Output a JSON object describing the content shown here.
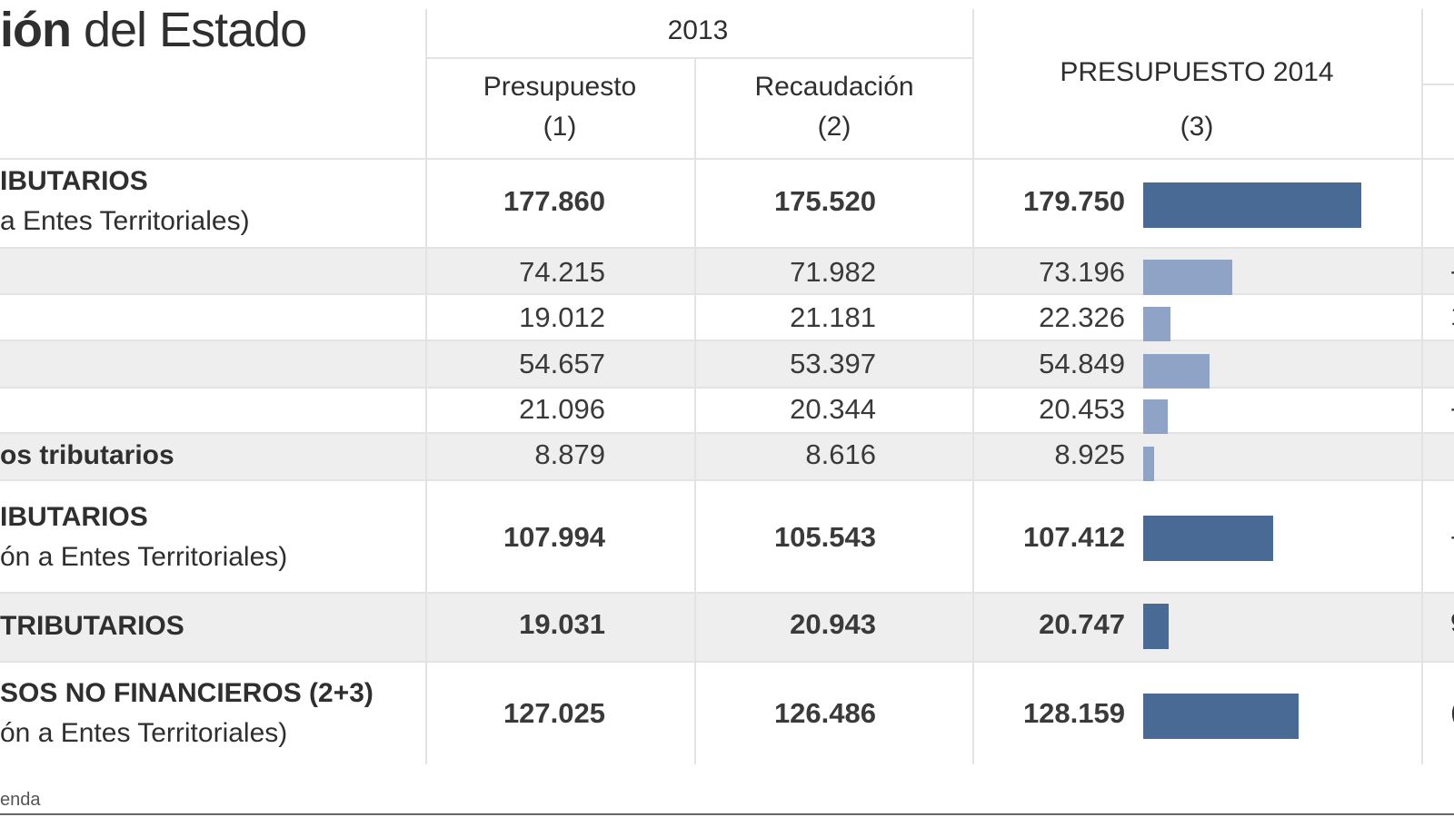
{
  "title": {
    "bold": "ión",
    "rest": " del Estado"
  },
  "header": {
    "year": "2013",
    "col1": [
      "Presupuesto",
      "(1)"
    ],
    "col2": [
      "Recaudación",
      "(2)"
    ],
    "col3": [
      "PRESUPUESTO 2014",
      "(3)"
    ]
  },
  "rows": [
    {
      "label_main": "IBUTARIOS",
      "label_sub": "a Entes Territoriales)",
      "p2013": "177.860",
      "r2013": "175.520",
      "p2014": "179.750",
      "value_2014": 179750,
      "bar_color": "#4a6a96",
      "bold": true
    },
    {
      "label_main": "",
      "label_sub": "",
      "p2013": "74.215",
      "r2013": "71.982",
      "p2014": "73.196",
      "value_2014": 73196,
      "bar_color": "#8fa3c6",
      "bold": false
    },
    {
      "label_main": "",
      "label_sub": "",
      "p2013": "19.012",
      "r2013": "21.181",
      "p2014": "22.326",
      "value_2014": 22326,
      "bar_color": "#8fa3c6",
      "bold": false
    },
    {
      "label_main": "",
      "label_sub": "",
      "p2013": "54.657",
      "r2013": "53.397",
      "p2014": "54.849",
      "value_2014": 54849,
      "bar_color": "#8fa3c6",
      "bold": false
    },
    {
      "label_main": "",
      "label_sub": "",
      "p2013": "21.096",
      "r2013": "20.344",
      "p2014": "20.453",
      "value_2014": 20453,
      "bar_color": "#8fa3c6",
      "bold": false
    },
    {
      "label_main": "os tributarios",
      "label_sub": "",
      "p2013": "8.879",
      "r2013": "8.616",
      "p2014": "8.925",
      "value_2014": 8925,
      "bar_color": "#8fa3c6",
      "bold": false
    },
    {
      "label_main": "IBUTARIOS",
      "label_sub": "ón a Entes Territoriales)",
      "p2013": "107.994",
      "r2013": "105.543",
      "p2014": "107.412",
      "value_2014": 107412,
      "bar_color": "#4a6a96",
      "bold": true
    },
    {
      "label_main": "TRIBUTARIOS",
      "label_sub": "",
      "p2013": "19.031",
      "r2013": "20.943",
      "p2014": "20.747",
      "value_2014": 20747,
      "bar_color": "#4a6a96",
      "bold": true
    },
    {
      "label_main": "SOS NO FINANCIEROS (2+3)",
      "label_sub": "ón a Entes Territoriales)",
      "p2013": "127.025",
      "r2013": "126.486",
      "p2014": "128.159",
      "value_2014": 128159,
      "bar_color": "#4a6a96",
      "bold": true
    }
  ],
  "right_cut": [
    "-",
    "1",
    "-",
    "-",
    "9",
    "("
  ],
  "source": "enda"
}
